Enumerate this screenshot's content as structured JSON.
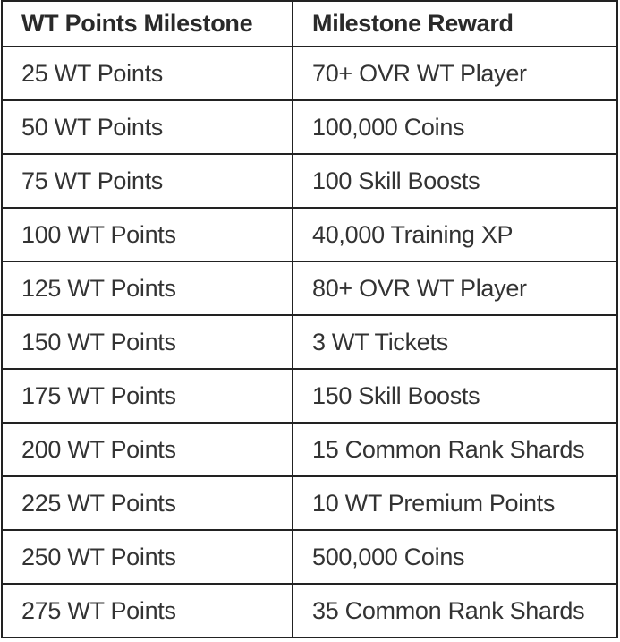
{
  "table": {
    "headers": [
      "WT Points Milestone",
      "Milestone Reward"
    ],
    "rows": [
      [
        "25 WT Points",
        "70+ OVR WT Player"
      ],
      [
        "50 WT Points",
        "100,000 Coins"
      ],
      [
        "75 WT Points",
        "100 Skill Boosts"
      ],
      [
        "100 WT Points",
        "40,000 Training XP"
      ],
      [
        "125 WT Points",
        "80+ OVR WT Player"
      ],
      [
        "150 WT Points",
        "3 WT Tickets"
      ],
      [
        "175 WT Points",
        "150 Skill Boosts"
      ],
      [
        "200 WT Points",
        "15 Common Rank Shards"
      ],
      [
        "225 WT Points",
        "10 WT Premium Points"
      ],
      [
        "250 WT Points",
        "500,000 Coins"
      ],
      [
        "275 WT Points",
        "35 Common Rank Shards"
      ]
    ]
  }
}
